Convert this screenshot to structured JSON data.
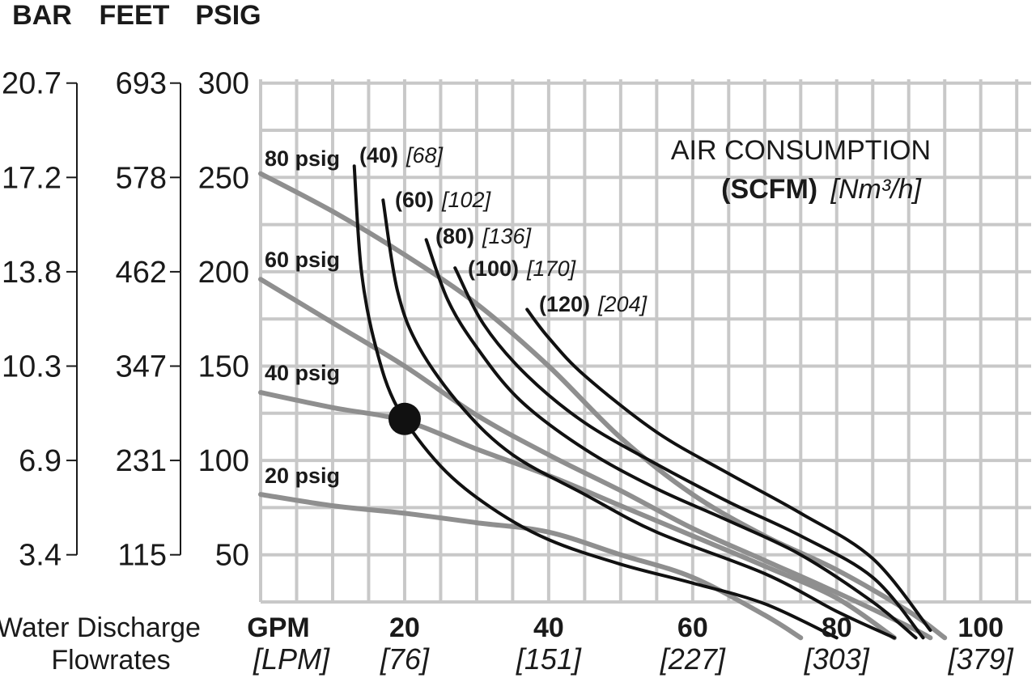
{
  "chart_data": {
    "type": "line",
    "title": "",
    "left_scales": [
      {
        "name": "BAR",
        "ticks": [
          "20.7",
          "17.2",
          "13.8",
          "10.3",
          "6.9",
          "3.4"
        ]
      },
      {
        "name": "FEET",
        "ticks": [
          "693",
          "578",
          "462",
          "347",
          "231",
          "115"
        ]
      },
      {
        "name": "PSIG",
        "ticks": [
          "300",
          "250",
          "200",
          "150",
          "100",
          "50"
        ]
      }
    ],
    "psig_tick_values": [
      300,
      250,
      200,
      150,
      100,
      50
    ],
    "xlabel": [
      "Water Discharge",
      "Flowrates"
    ],
    "xunit": {
      "gpm": "GPM",
      "lpm": "[LPM]"
    },
    "x_ticks": [
      {
        "value": 20,
        "gpm": "20",
        "lpm": "[76]"
      },
      {
        "value": 40,
        "gpm": "40",
        "lpm": "[151]"
      },
      {
        "value": 60,
        "gpm": "60",
        "lpm": "[227]"
      },
      {
        "value": 80,
        "gpm": "80",
        "lpm": "[303]"
      },
      {
        "value": 100,
        "gpm": "100",
        "lpm": "[379]"
      }
    ],
    "xlim": [
      0,
      107
    ],
    "ylim": [
      0,
      300
    ],
    "grid": true,
    "air_consumption_legend": {
      "title": "AIR CONSUMPTION",
      "unit_bold": "(SCFM)",
      "unit_italic": "[Nm³/h]"
    },
    "operating_point": {
      "x": 20,
      "y": 122
    },
    "pressure_curves": [
      {
        "label": "80 psig",
        "points": [
          [
            0,
            252
          ],
          [
            10,
            232
          ],
          [
            20,
            209
          ],
          [
            30,
            183
          ],
          [
            40,
            150
          ],
          [
            50,
            112
          ],
          [
            60,
            82
          ],
          [
            70,
            60
          ],
          [
            80,
            42
          ],
          [
            90,
            20
          ],
          [
            95,
            6
          ]
        ]
      },
      {
        "label": "60 psig",
        "points": [
          [
            0,
            196
          ],
          [
            10,
            173
          ],
          [
            20,
            150
          ],
          [
            30,
            124
          ],
          [
            40,
            103
          ],
          [
            50,
            84
          ],
          [
            60,
            64
          ],
          [
            70,
            47
          ],
          [
            80,
            30
          ],
          [
            90,
            12
          ],
          [
            93,
            6
          ]
        ]
      },
      {
        "label": "40 psig",
        "points": [
          [
            0,
            136
          ],
          [
            10,
            128
          ],
          [
            20,
            121
          ],
          [
            30,
            106
          ],
          [
            40,
            92
          ],
          [
            50,
            76
          ],
          [
            60,
            60
          ],
          [
            70,
            44
          ],
          [
            80,
            27
          ],
          [
            88,
            6
          ]
        ]
      },
      {
        "label": "20 psig",
        "points": [
          [
            0,
            82
          ],
          [
            10,
            76
          ],
          [
            20,
            72
          ],
          [
            30,
            67
          ],
          [
            40,
            62
          ],
          [
            50,
            50
          ],
          [
            60,
            38
          ],
          [
            70,
            18
          ],
          [
            75,
            6
          ]
        ]
      }
    ],
    "air_curves": [
      {
        "label_bold": "(40)",
        "label_italic": "[68]",
        "points": [
          [
            13,
            256
          ],
          [
            14,
            200
          ],
          [
            16,
            160
          ],
          [
            19,
            128
          ],
          [
            25,
            97
          ],
          [
            32,
            75
          ],
          [
            40,
            58
          ],
          [
            50,
            45
          ],
          [
            60,
            35
          ],
          [
            70,
            24
          ],
          [
            80,
            6
          ]
        ]
      },
      {
        "label_bold": "(60)",
        "label_italic": "[102]",
        "points": [
          [
            17,
            238
          ],
          [
            19,
            190
          ],
          [
            22,
            160
          ],
          [
            28,
            128
          ],
          [
            35,
            103
          ],
          [
            45,
            82
          ],
          [
            55,
            62
          ],
          [
            70,
            40
          ],
          [
            80,
            20
          ],
          [
            88,
            6
          ]
        ]
      },
      {
        "label_bold": "(80)",
        "label_italic": "[136]",
        "points": [
          [
            23,
            217
          ],
          [
            26,
            185
          ],
          [
            30,
            160
          ],
          [
            36,
            132
          ],
          [
            45,
            106
          ],
          [
            55,
            85
          ],
          [
            65,
            68
          ],
          [
            75,
            50
          ],
          [
            85,
            25
          ],
          [
            91,
            6
          ]
        ]
      },
      {
        "label_bold": "(100)",
        "label_italic": "[170]",
        "points": [
          [
            27,
            202
          ],
          [
            31,
            172
          ],
          [
            37,
            145
          ],
          [
            45,
            120
          ],
          [
            55,
            98
          ],
          [
            65,
            78
          ],
          [
            75,
            60
          ],
          [
            85,
            38
          ],
          [
            92,
            6
          ]
        ]
      },
      {
        "label_bold": "(120)",
        "label_italic": "[204]",
        "points": [
          [
            37,
            180
          ],
          [
            40,
            165
          ],
          [
            45,
            145
          ],
          [
            55,
            115
          ],
          [
            65,
            93
          ],
          [
            75,
            72
          ],
          [
            85,
            48
          ],
          [
            93,
            10
          ]
        ]
      }
    ],
    "colors": {
      "grid": "#c8c8c8",
      "pressure": "#8f8f8f",
      "air": "#111111",
      "point": "#111111",
      "text": "#1a1a1a"
    }
  }
}
